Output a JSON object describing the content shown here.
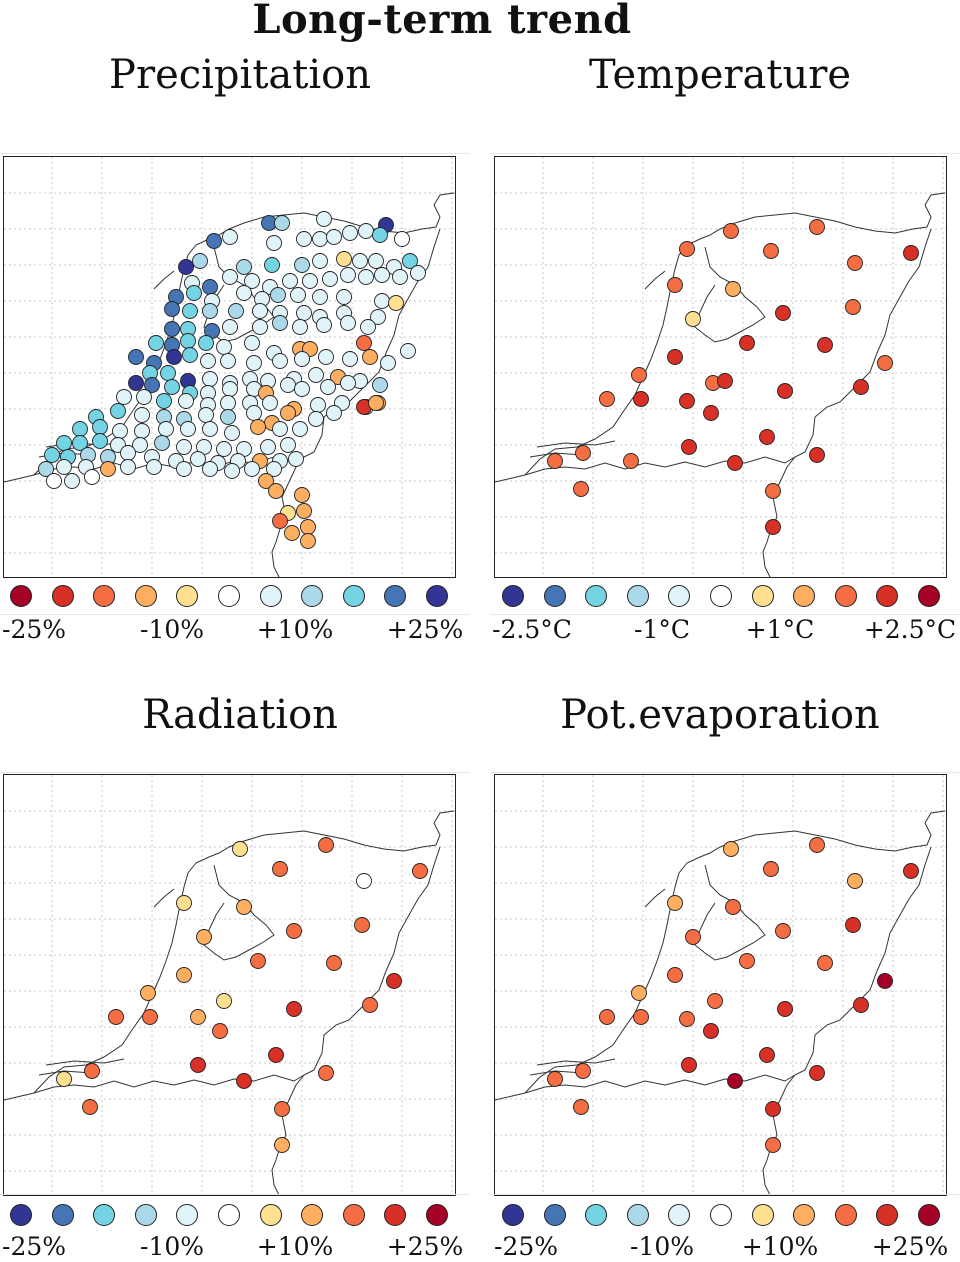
{
  "title": "Long-term trend",
  "palette": {
    "dry_to_wet": [
      "#a50026",
      "#d73027",
      "#f46d43",
      "#fdae61",
      "#fee090",
      "#ffffff",
      "#e0f3f8",
      "#abd9e9",
      "#74d4e4",
      "#4575b4",
      "#313695"
    ],
    "cold_to_hot": [
      "#313695",
      "#4575b4",
      "#74d4e4",
      "#abd9e9",
      "#e0f3f8",
      "#ffffff",
      "#fee090",
      "#fdae61",
      "#f46d43",
      "#d73027",
      "#a50026"
    ]
  },
  "panels": {
    "precipitation": {
      "title": "Precipitation",
      "legend_labels": [
        "-25%",
        "-10%",
        "+10%",
        "+25%"
      ],
      "stations": "dense"
    },
    "temperature": {
      "title": "Temperature",
      "legend_labels": [
        "-2.5°C",
        "-1°C",
        "+1°C",
        "+2.5°C"
      ]
    },
    "radiation": {
      "title": "Radiation",
      "legend_labels": [
        "-25%",
        "-10%",
        "+10%",
        "+25%"
      ]
    },
    "evaporation": {
      "title": "Pot.evaporation",
      "legend_labels": [
        "-25%",
        "-10%",
        "+10%",
        "+25%"
      ]
    }
  }
}
